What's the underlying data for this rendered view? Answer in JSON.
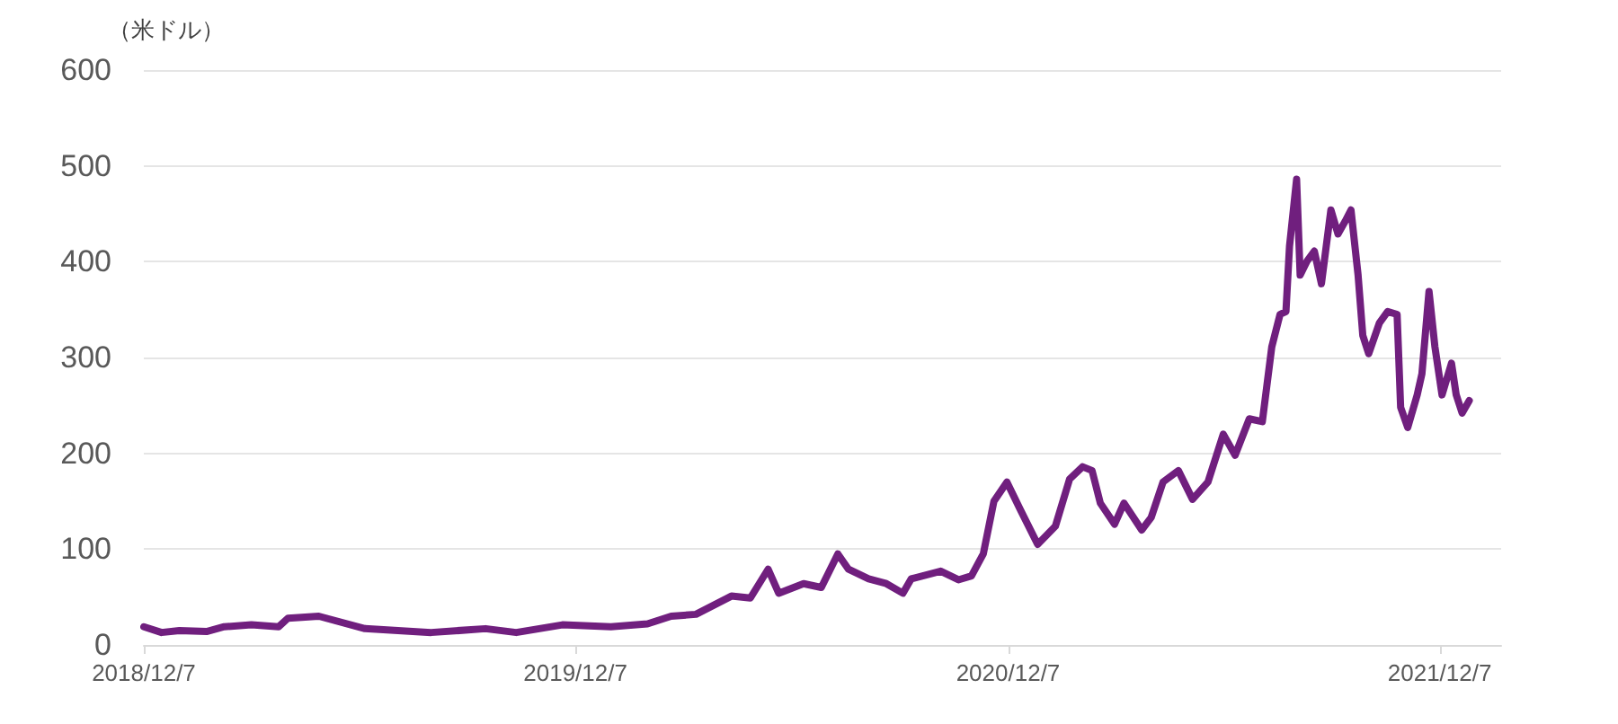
{
  "chart_data": {
    "type": "line",
    "ylabel": "（米ドル）",
    "x": [
      "2018-12-07",
      "2018-12-22",
      "2019-01-06",
      "2019-01-29",
      "2019-02-13",
      "2019-03-08",
      "2019-03-31",
      "2019-04-08",
      "2019-05-04",
      "2019-06-12",
      "2019-08-07",
      "2019-09-22",
      "2019-10-18",
      "2019-11-26",
      "2020-01-06",
      "2020-02-06",
      "2020-02-26",
      "2020-03-18",
      "2020-04-17",
      "2020-05-03",
      "2020-05-18",
      "2020-05-27",
      "2020-06-17",
      "2020-07-02",
      "2020-07-16",
      "2020-07-25",
      "2020-08-11",
      "2020-08-26",
      "2020-09-09",
      "2020-09-16",
      "2020-10-11",
      "2020-10-26",
      "2020-11-06",
      "2020-11-16",
      "2020-11-25",
      "2020-12-06",
      "2020-12-17",
      "2021-01-01",
      "2021-01-16",
      "2021-01-28",
      "2021-02-08",
      "2021-02-16",
      "2021-02-23",
      "2021-03-07",
      "2021-03-15",
      "2021-03-30",
      "2021-04-07",
      "2021-04-17",
      "2021-04-30",
      "2021-05-12",
      "2021-05-25",
      "2021-06-07",
      "2021-06-17",
      "2021-06-29",
      "2021-07-10",
      "2021-07-18",
      "2021-07-25",
      "2021-07-30",
      "2021-08-02",
      "2021-08-08",
      "2021-08-11",
      "2021-08-17",
      "2021-08-23",
      "2021-08-29",
      "2021-09-06",
      "2021-09-12",
      "2021-09-18",
      "2021-09-23",
      "2021-09-29",
      "2021-10-03",
      "2021-10-08",
      "2021-10-17",
      "2021-10-24",
      "2021-11-01",
      "2021-11-04",
      "2021-11-10",
      "2021-11-18",
      "2021-11-22",
      "2021-11-28",
      "2021-12-03",
      "2021-12-09",
      "2021-12-17",
      "2021-12-21",
      "2021-12-26",
      "2022-01-01"
    ],
    "series": [
      {
        "color": "#701f7e",
        "values": [
          19,
          13,
          15,
          14,
          19,
          21,
          19,
          28,
          30,
          17,
          13,
          17,
          13,
          21,
          19,
          22,
          30,
          32,
          51,
          49,
          79,
          54,
          64,
          60,
          95,
          79,
          69,
          64,
          54,
          69,
          77,
          68,
          72,
          95,
          150,
          170,
          142,
          105,
          124,
          173,
          186,
          182,
          148,
          126,
          148,
          120,
          133,
          170,
          182,
          152,
          170,
          220,
          198,
          236,
          233,
          311,
          345,
          348,
          416,
          486,
          386,
          401,
          411,
          377,
          454,
          429,
          442,
          454,
          386,
          323,
          304,
          336,
          348,
          345,
          248,
          227,
          261,
          283,
          369,
          311,
          261,
          294,
          261,
          242,
          255
        ]
      }
    ],
    "xlim": [
      "2018-12-07",
      "2022-01-28"
    ],
    "xticks": [
      {
        "value": "2018-12-07",
        "label": "2018/12/7"
      },
      {
        "value": "2019-12-07",
        "label": "2019/12/7"
      },
      {
        "value": "2020-12-07",
        "label": "2020/12/7"
      },
      {
        "value": "2021-12-07",
        "label": "2021/12/7"
      }
    ],
    "ylim": [
      0,
      600
    ],
    "yticks": [
      0,
      100,
      200,
      300,
      400,
      500,
      600
    ],
    "grid": "y",
    "marker": "none",
    "line_style": "solid"
  }
}
